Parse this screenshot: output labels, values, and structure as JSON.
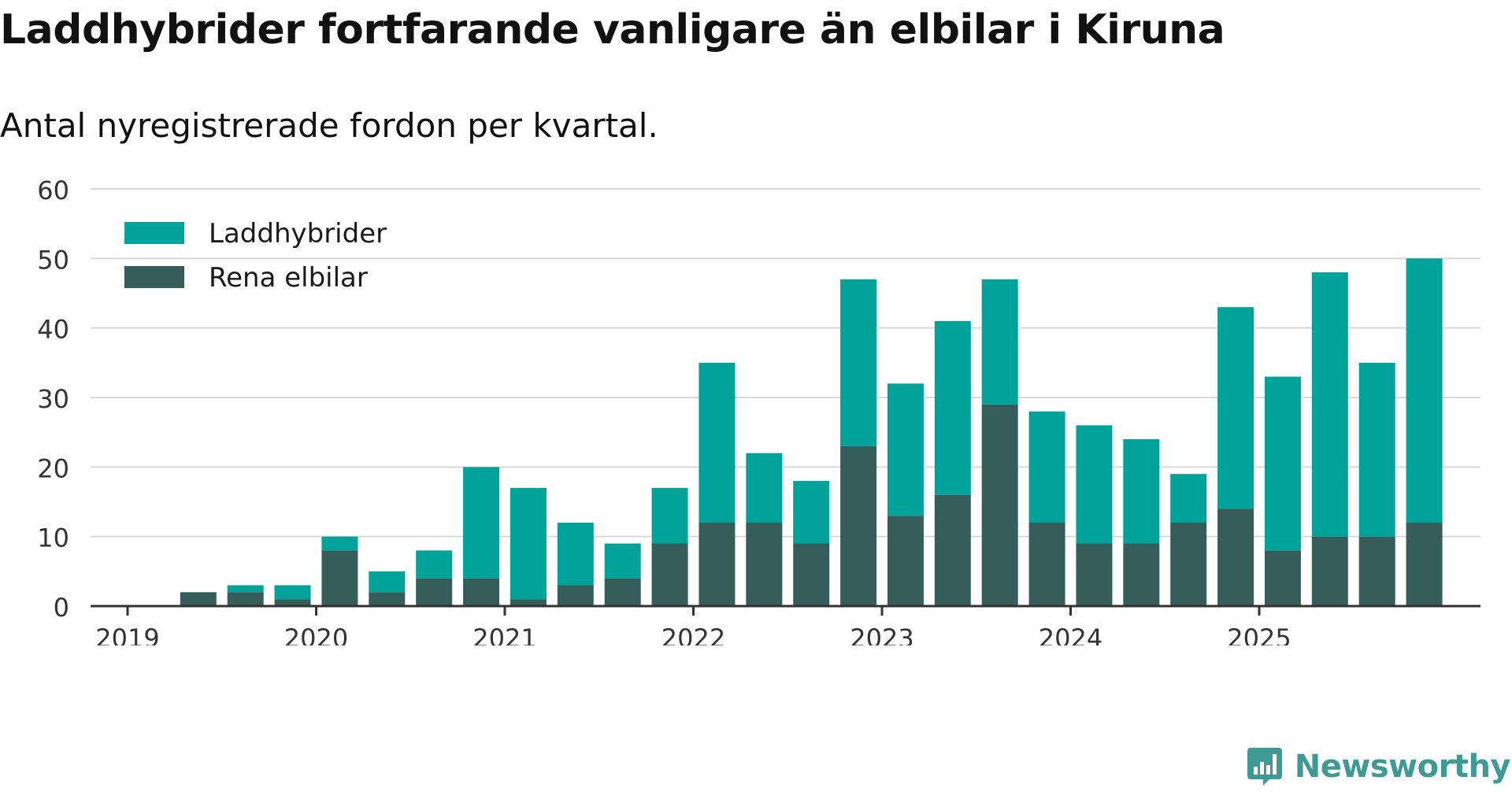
{
  "title": "Laddhybrider fortfarande vanligare än elbilar i Kiruna",
  "subtitle": "Antal nyregistrerade fordon per kvartal.",
  "brand": {
    "name": "Newsworthy",
    "logo_icon": "newsworthy-logo-icon"
  },
  "colors": {
    "laddhybrider": "#00a39a",
    "rena_elbilar": "#355e5b",
    "grid": "#d9d9d9",
    "axis": "#333333",
    "brand": "#3d9a94"
  },
  "chart_data": {
    "type": "bar",
    "stacked": true,
    "title": "Laddhybrider fortfarande vanligare än elbilar i Kiruna",
    "subtitle": "Antal nyregistrerade fordon per kvartal.",
    "xlabel": "",
    "ylabel": "",
    "ylim": [
      0,
      60
    ],
    "yticks": [
      0,
      10,
      20,
      30,
      40,
      50,
      60
    ],
    "grid": true,
    "legend_position": "top-left",
    "x_tick_labels": [
      "2019",
      "2020",
      "2021",
      "2022",
      "2023",
      "2024",
      "2025"
    ],
    "categories": [
      "2019 Q1",
      "2019 Q2",
      "2019 Q3",
      "2019 Q4",
      "2020 Q1",
      "2020 Q2",
      "2020 Q3",
      "2020 Q4",
      "2021 Q1",
      "2021 Q2",
      "2021 Q3",
      "2021 Q4",
      "2022 Q1",
      "2022 Q2",
      "2022 Q3",
      "2022 Q4",
      "2023 Q1",
      "2023 Q2",
      "2023 Q3",
      "2023 Q4",
      "2024 Q1",
      "2024 Q2",
      "2024 Q3",
      "2024 Q4",
      "2025 Q1",
      "2025 Q2",
      "2025 Q3",
      "2025 Q4"
    ],
    "series": [
      {
        "name": "Rena elbilar",
        "color": "#355e5b",
        "values": [
          0,
          2,
          2,
          1,
          8,
          2,
          4,
          4,
          1,
          3,
          4,
          9,
          12,
          12,
          9,
          23,
          13,
          16,
          29,
          12,
          9,
          9,
          12,
          14,
          8,
          10,
          10,
          12
        ]
      },
      {
        "name": "Laddhybrider",
        "color": "#00a39a",
        "values": [
          0,
          0,
          1,
          2,
          2,
          3,
          4,
          16,
          16,
          9,
          5,
          8,
          23,
          10,
          9,
          24,
          19,
          25,
          18,
          16,
          17,
          15,
          7,
          29,
          25,
          38,
          25,
          38
        ]
      }
    ],
    "legend": [
      {
        "label": "Laddhybrider",
        "color": "#00a39a"
      },
      {
        "label": "Rena elbilar",
        "color": "#355e5b"
      }
    ]
  }
}
